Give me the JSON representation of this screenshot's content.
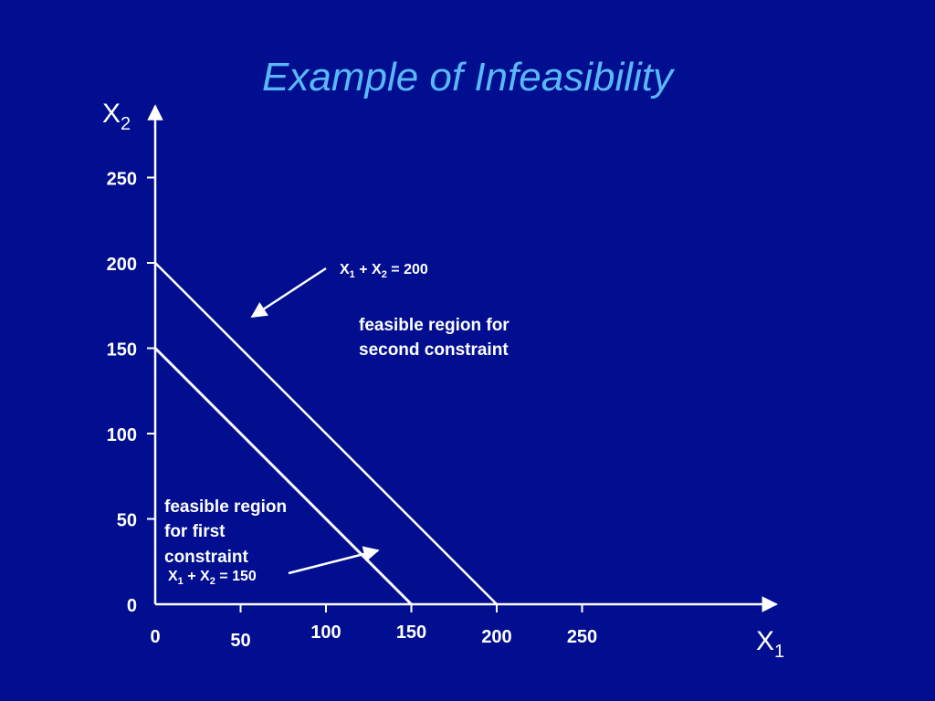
{
  "slide": {
    "title": "Example of Infeasibility"
  },
  "chart_data": {
    "type": "line",
    "title": "Example of Infeasibility",
    "x_axis": {
      "label": "X",
      "label_sub": "1",
      "ticks": [
        0,
        50,
        100,
        150,
        200,
        250
      ],
      "range": [
        0,
        290
      ]
    },
    "y_axis": {
      "label": "X",
      "label_sub": "2",
      "ticks": [
        0,
        50,
        100,
        150,
        200,
        250
      ],
      "range": [
        0,
        290
      ]
    },
    "grid": false,
    "series": [
      {
        "id": "c1",
        "equation": {
          "a": "X",
          "a_sub": "1",
          "op": " + ",
          "b": "X",
          "b_sub": "2",
          "rhs": " = 150"
        },
        "points": [
          [
            0,
            150
          ],
          [
            150,
            0
          ]
        ]
      },
      {
        "id": "c2",
        "equation": {
          "a": "X",
          "a_sub": "1",
          "op": " + ",
          "b": "X",
          "b_sub": "2",
          "rhs": " = 200"
        },
        "points": [
          [
            0,
            200
          ],
          [
            200,
            0
          ]
        ]
      }
    ],
    "annotations": {
      "first_region": [
        "feasible region",
        "for first",
        "constraint"
      ],
      "second_region": [
        "feasible region for",
        "second constraint"
      ]
    }
  },
  "colors": {
    "background": "#000e8f",
    "title": "#5ab8f8",
    "ink": "#ffffff"
  }
}
